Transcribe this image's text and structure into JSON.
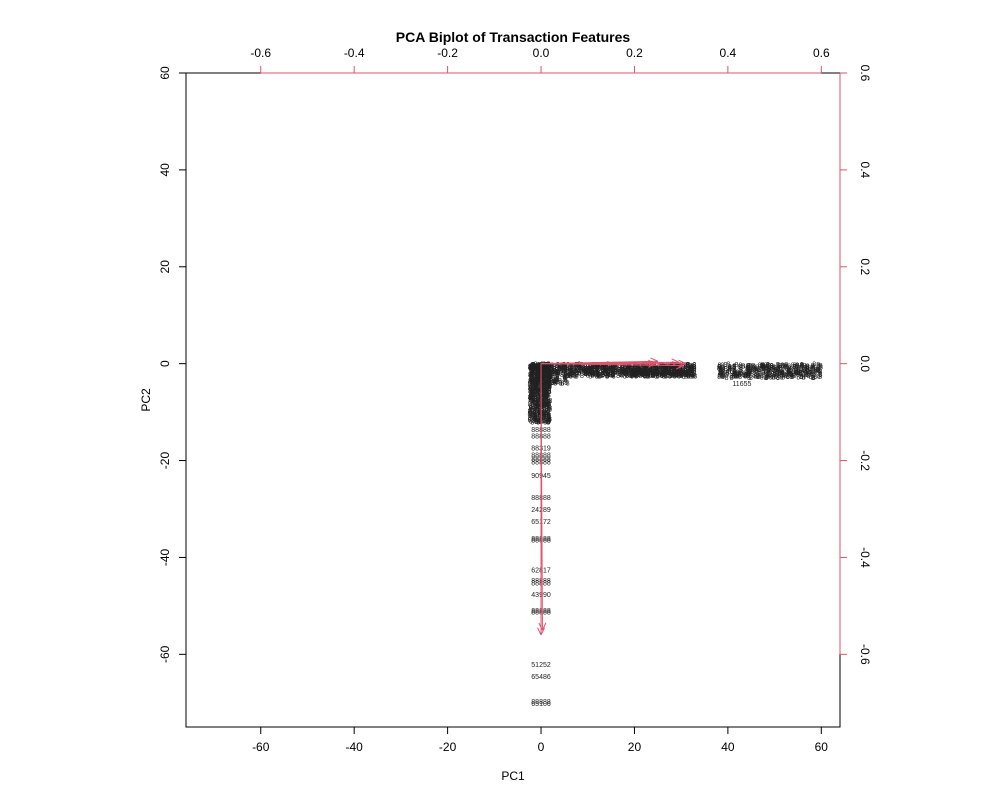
{
  "chart_data": {
    "type": "scatter",
    "title": "PCA Biplot of Transaction Features",
    "xlabel": "PC1",
    "ylabel": "PC2",
    "xlim": [
      -76,
      64
    ],
    "ylim": [
      -75,
      60
    ],
    "x_ticks": [
      "-60",
      "-40",
      "-20",
      "0",
      "20",
      "40",
      "60"
    ],
    "y_ticks": [
      "60",
      "40",
      "20",
      "0",
      "-20",
      "-40",
      "-60"
    ],
    "x_tick_values": [
      -60,
      -40,
      -20,
      0,
      20,
      40,
      60
    ],
    "y_tick_values": [
      60,
      40,
      20,
      0,
      -20,
      -40,
      -60
    ],
    "top_axis_ticks": [
      "-0.6",
      "-0.4",
      "-0.2",
      "0.0",
      "0.2",
      "0.4",
      "0.6"
    ],
    "top_axis_values": [
      -0.6,
      -0.4,
      -0.2,
      0.0,
      0.2,
      0.4,
      0.6
    ],
    "right_axis_ticks": [
      "0.6",
      "0.4",
      "0.2",
      "0.0",
      "-0.2",
      "-0.4",
      "-0.6"
    ],
    "right_axis_values": [
      0.6,
      0.4,
      0.2,
      0.0,
      -0.2,
      -0.4,
      -0.6
    ],
    "loading_scale": 100,
    "loading_color": "#DF536B",
    "point_color": "#000000",
    "grid": false,
    "labeled_points": [
      {
        "label": "88319",
        "x": 0,
        "y": -17.3
      },
      {
        "label": "90945",
        "x": 0,
        "y": -23.0
      },
      {
        "label": "24289",
        "x": 0,
        "y": -30.0
      },
      {
        "label": "65172",
        "x": 0,
        "y": -32.5
      },
      {
        "label": "62817",
        "x": 0,
        "y": -42.5
      },
      {
        "label": "43990",
        "x": 0,
        "y": -47.5
      },
      {
        "label": "51252",
        "x": 0,
        "y": -62.0
      },
      {
        "label": "65486",
        "x": 0,
        "y": -64.5
      },
      {
        "label": "65106",
        "x": 0,
        "y": -70.0
      },
      {
        "label": "11655",
        "x": 43,
        "y": -4.0
      }
    ]
  }
}
